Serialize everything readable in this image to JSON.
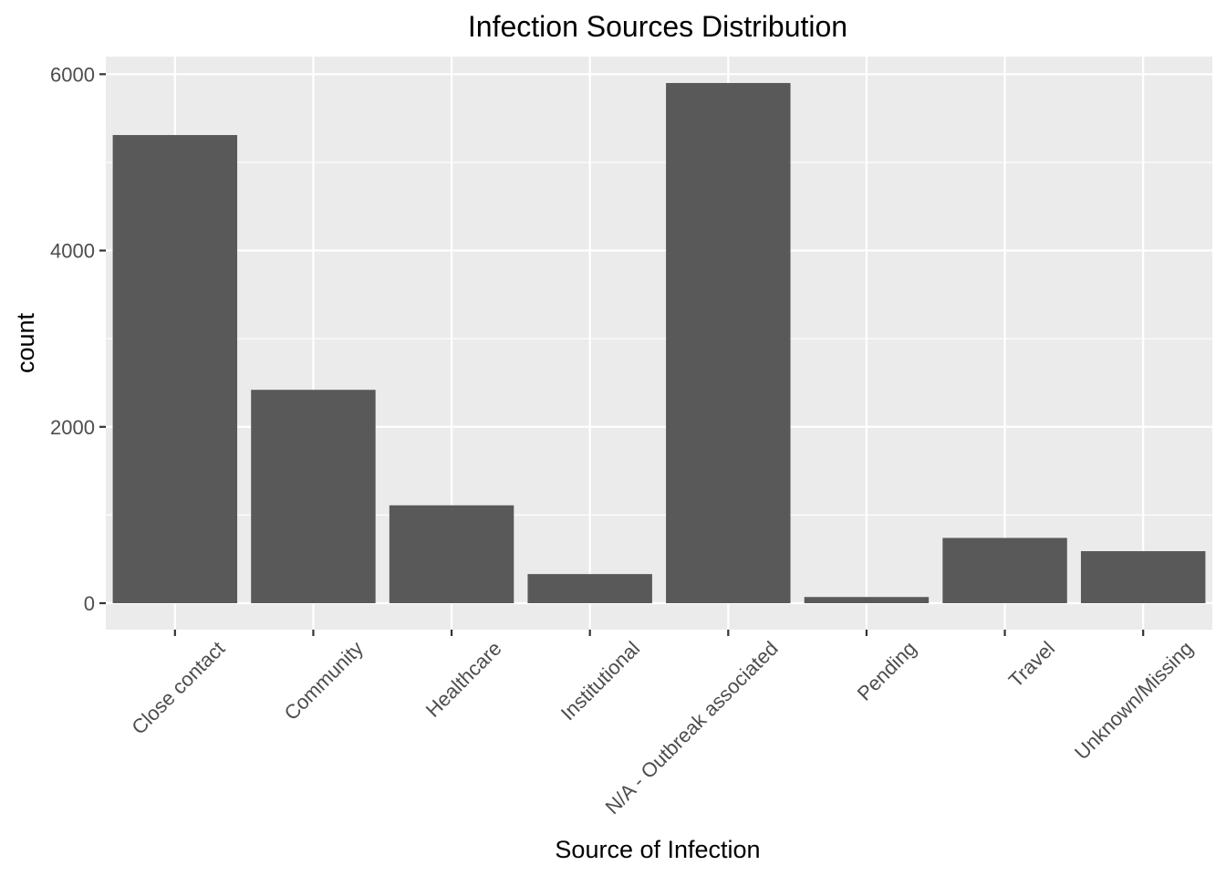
{
  "chart_data": {
    "type": "bar",
    "title": "Infection Sources Distribution",
    "xlabel": "Source of Infection",
    "ylabel": "count",
    "categories": [
      "Close contact",
      "Community",
      "Healthcare",
      "Institutional",
      "N/A - Outbreak associated",
      "Pending",
      "Travel",
      "Unknown/Missing"
    ],
    "values": [
      5310,
      2420,
      1110,
      330,
      5900,
      70,
      740,
      590
    ],
    "ylim": [
      -300,
      6200
    ],
    "yticks": [
      0,
      2000,
      4000,
      6000
    ],
    "ytick_labels": [
      "0",
      "2000",
      "4000",
      "6000"
    ],
    "grid": true,
    "panel_color": "#ebebeb",
    "bar_color": "#595959"
  }
}
